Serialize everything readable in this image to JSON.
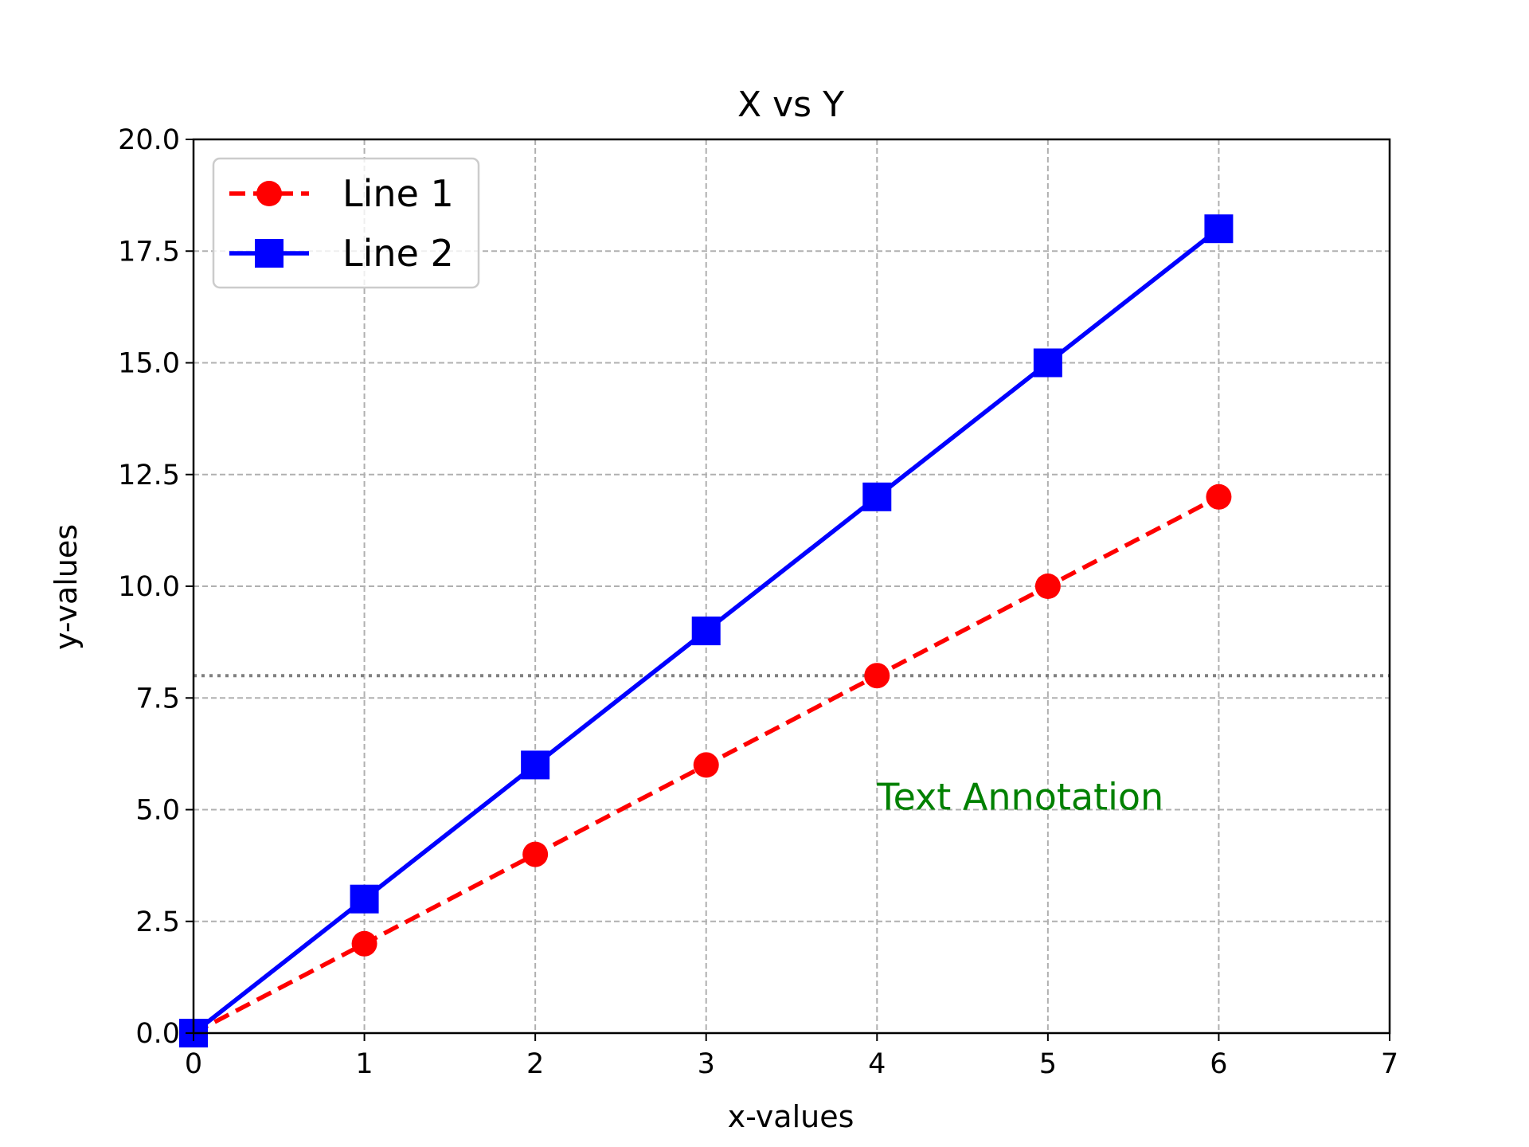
{
  "chart_data": {
    "type": "line",
    "title": "X vs Y",
    "xlabel": "x-values",
    "ylabel": "y-values",
    "xlim": [
      0,
      7
    ],
    "ylim": [
      0,
      20
    ],
    "xticks": [
      "0",
      "1",
      "2",
      "3",
      "4",
      "5",
      "6",
      "7"
    ],
    "yticks": [
      "0.0",
      "2.5",
      "5.0",
      "7.5",
      "10.0",
      "12.5",
      "15.0",
      "17.5",
      "20.0"
    ],
    "grid": true,
    "legend_position": "top-left",
    "series": [
      {
        "name": "Line 1",
        "x": [
          0,
          1,
          2,
          3,
          4,
          5,
          6
        ],
        "y": [
          0,
          2,
          4,
          6,
          8,
          10,
          12
        ],
        "color": "#ff0000",
        "line_style": "dashed",
        "marker": "circle"
      },
      {
        "name": "Line 2",
        "x": [
          0,
          1,
          2,
          3,
          4,
          5,
          6
        ],
        "y": [
          0,
          3,
          6,
          9,
          12,
          15,
          18
        ],
        "color": "#0000ff",
        "line_style": "solid",
        "marker": "square"
      }
    ],
    "reference_line": {
      "axis": "y",
      "value": 8,
      "color": "#808080",
      "line_style": "dotted"
    },
    "annotations": [
      {
        "text": "Text Annotation",
        "x": 4,
        "y": 5,
        "color": "#008000"
      }
    ]
  }
}
